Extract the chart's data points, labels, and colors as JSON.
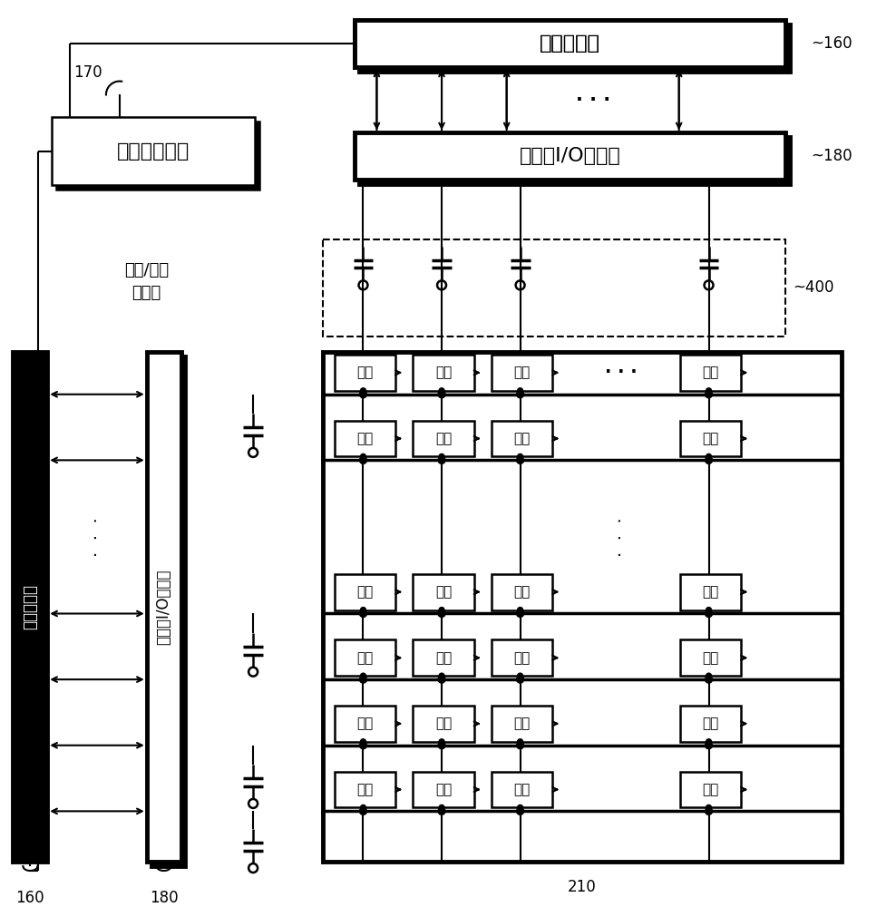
{
  "bg_color": "#ffffff",
  "lc": "#000000",
  "thick": 3.5,
  "thin": 1.5,
  "bw": 1.8,
  "fs_large": 16,
  "fs_med": 13,
  "fs_small": 12,
  "fs_unit": 11,
  "tester_top": "测试器通道",
  "data_buf": "数据线I/O缓冲器",
  "time_meter": "时间测量仪器",
  "charge_cap_line1": "充电/放点",
  "charge_cap_line2": "电容器",
  "scan_buf": "扫描线I/O缓冲器",
  "tester_left": "测试器通道",
  "unit": "单元",
  "r160": "160",
  "r180": "180",
  "r170": "170",
  "r400": "400",
  "r210": "210",
  "dots3": "· · ·"
}
